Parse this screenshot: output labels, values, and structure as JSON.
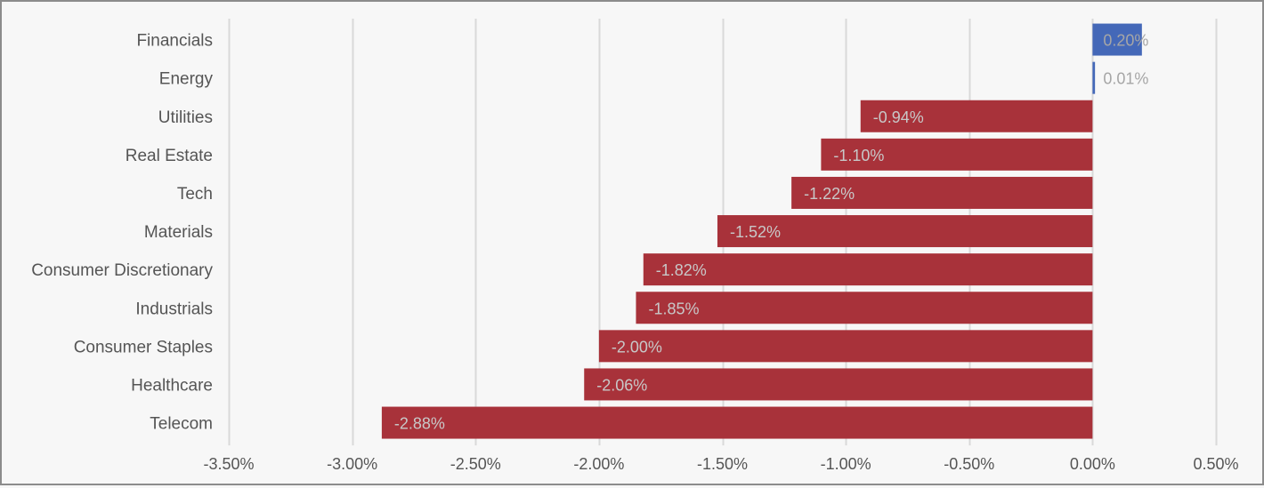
{
  "chart_data": {
    "type": "bar",
    "orientation": "horizontal",
    "title": "",
    "xlabel": "",
    "ylabel": "",
    "categories": [
      "Financials",
      "Energy",
      "Utilities",
      "Real Estate",
      "Tech",
      "Materials",
      "Consumer Discretionary",
      "Industrials",
      "Consumer Staples",
      "Healthcare",
      "Telecom"
    ],
    "values": [
      0.2,
      0.01,
      -0.94,
      -1.1,
      -1.22,
      -1.52,
      -1.82,
      -1.85,
      -2.0,
      -2.06,
      -2.88
    ],
    "value_labels": [
      "0.20%",
      "0.01%",
      "-0.94%",
      "-1.10%",
      "-1.22%",
      "-1.52%",
      "-1.82%",
      "-1.85%",
      "-2.00%",
      "-2.06%",
      "-2.88%"
    ],
    "xlim": [
      -3.5,
      0.5
    ],
    "xticks": [
      -3.5,
      -3.0,
      -2.5,
      -2.0,
      -1.5,
      -1.0,
      -0.5,
      0.0,
      0.5
    ],
    "xtick_labels": [
      "-3.50%",
      "-3.00%",
      "-2.50%",
      "-2.00%",
      "-1.50%",
      "-1.00%",
      "-0.50%",
      "0.00%",
      "0.50%"
    ],
    "grid": true,
    "legend": "none",
    "colors": {
      "positive": "#4468b8",
      "negative": "#a8323a",
      "grid": "#d9d9d9",
      "category_text": "#555555",
      "tick_text": "#555555",
      "label_on_bar": "#c8c8c8",
      "label_outside": "#a6a6a6"
    }
  }
}
